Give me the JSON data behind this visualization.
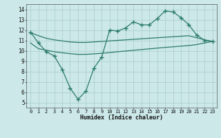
{
  "x": [
    0,
    1,
    2,
    3,
    4,
    5,
    6,
    7,
    8,
    9,
    10,
    11,
    12,
    13,
    14,
    15,
    16,
    17,
    18,
    19,
    20,
    21,
    22,
    23
  ],
  "line1": [
    11.8,
    10.75,
    9.9,
    9.5,
    8.2,
    6.4,
    5.3,
    6.1,
    8.3,
    9.4,
    12.0,
    11.9,
    12.2,
    12.8,
    12.5,
    12.5,
    13.1,
    13.85,
    13.75,
    13.2,
    12.5,
    11.5,
    11.0,
    10.9
  ],
  "line2": [
    11.75,
    11.45,
    11.2,
    11.05,
    10.95,
    10.85,
    10.8,
    10.8,
    10.85,
    10.9,
    10.95,
    11.0,
    11.05,
    11.1,
    11.15,
    11.2,
    11.25,
    11.3,
    11.35,
    11.4,
    11.45,
    11.25,
    11.05,
    10.9
  ],
  "line3": [
    10.75,
    10.2,
    10.05,
    9.9,
    9.8,
    9.72,
    9.65,
    9.65,
    9.7,
    9.75,
    9.82,
    9.9,
    9.97,
    10.04,
    10.11,
    10.18,
    10.25,
    10.32,
    10.38,
    10.44,
    10.5,
    10.6,
    10.75,
    10.9
  ],
  "color": "#2a7a6a",
  "bg_color": "#cce8e8",
  "grid_color": "#aed0d0",
  "xlabel": "Humidex (Indice chaleur)",
  "ylim": [
    4.5,
    14.5
  ],
  "xlim": [
    -0.5,
    23.5
  ],
  "yticks": [
    5,
    6,
    7,
    8,
    9,
    10,
    11,
    12,
    13,
    14
  ],
  "xticks": [
    0,
    1,
    2,
    3,
    4,
    5,
    6,
    7,
    8,
    9,
    10,
    11,
    12,
    13,
    14,
    15,
    16,
    17,
    18,
    19,
    20,
    21,
    22,
    23
  ]
}
